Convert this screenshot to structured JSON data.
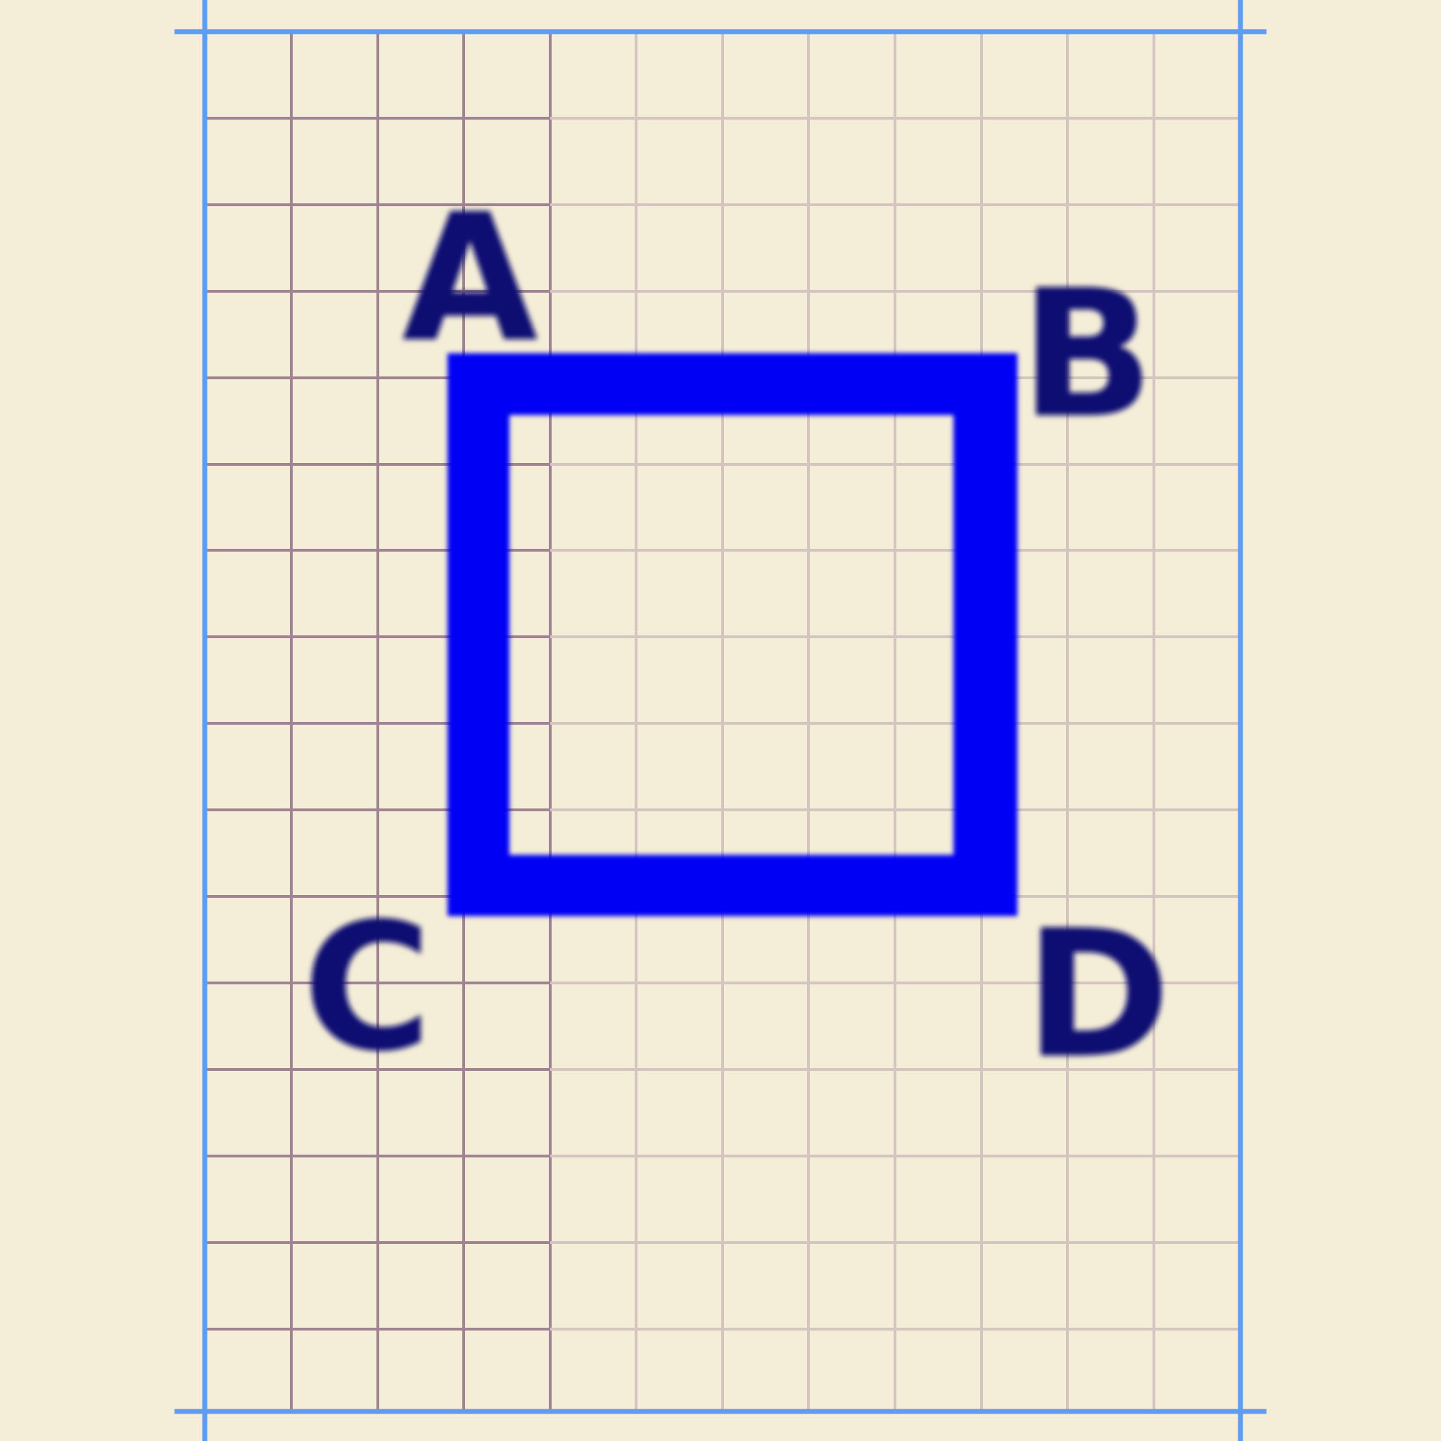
{
  "colors": {
    "paper": "#f4edd7",
    "grid_dark": "#a08493",
    "grid_light": "#d5c5c0",
    "margin_lines": "#5d9cf0",
    "square_ink": "#0000f5",
    "label_ink": "#0a0a72"
  },
  "diagram": {
    "shape": "square",
    "grid": true,
    "vertices": [
      {
        "id": "A",
        "label": "A",
        "corner": "top-left"
      },
      {
        "id": "B",
        "label": "B",
        "corner": "top-right"
      },
      {
        "id": "C",
        "label": "C",
        "corner": "bottom-left"
      },
      {
        "id": "D",
        "label": "D",
        "corner": "bottom-right"
      }
    ]
  }
}
